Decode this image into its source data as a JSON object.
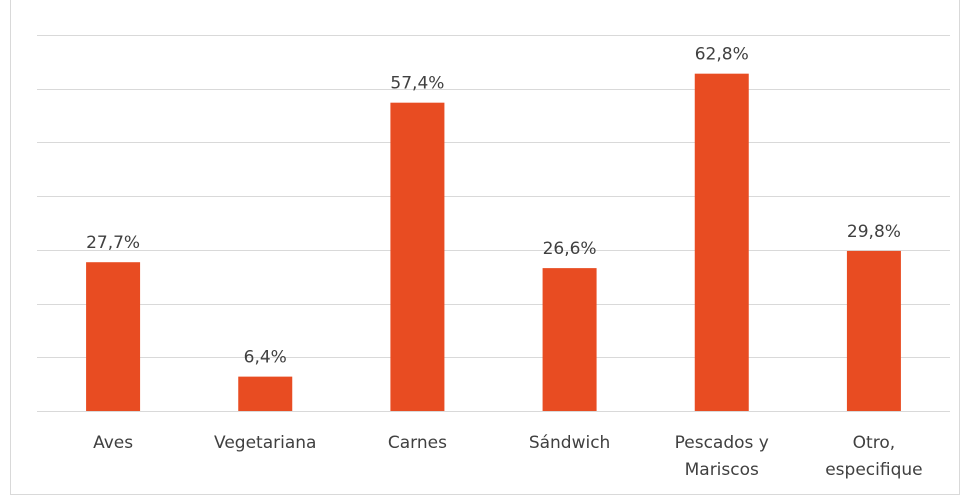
{
  "chart_data": {
    "type": "bar",
    "categories": [
      [
        "Aves"
      ],
      [
        "Vegetariana"
      ],
      [
        "Carnes"
      ],
      [
        "Sándwich"
      ],
      [
        "Pescados y",
        "Mariscos"
      ],
      [
        "Otro,",
        "especifique"
      ]
    ],
    "values": [
      27.7,
      6.4,
      57.4,
      26.6,
      62.8,
      29.8
    ],
    "data_labels": [
      "27,7%",
      "6,4%",
      "57,4%",
      "26,6%",
      "62,8%",
      "29,8%"
    ],
    "ylim": [
      0,
      70
    ],
    "grid": true,
    "legend": "none",
    "colors": {
      "bar": "#E84C22",
      "grid": "#D9D9D9",
      "text": "#404040"
    }
  }
}
